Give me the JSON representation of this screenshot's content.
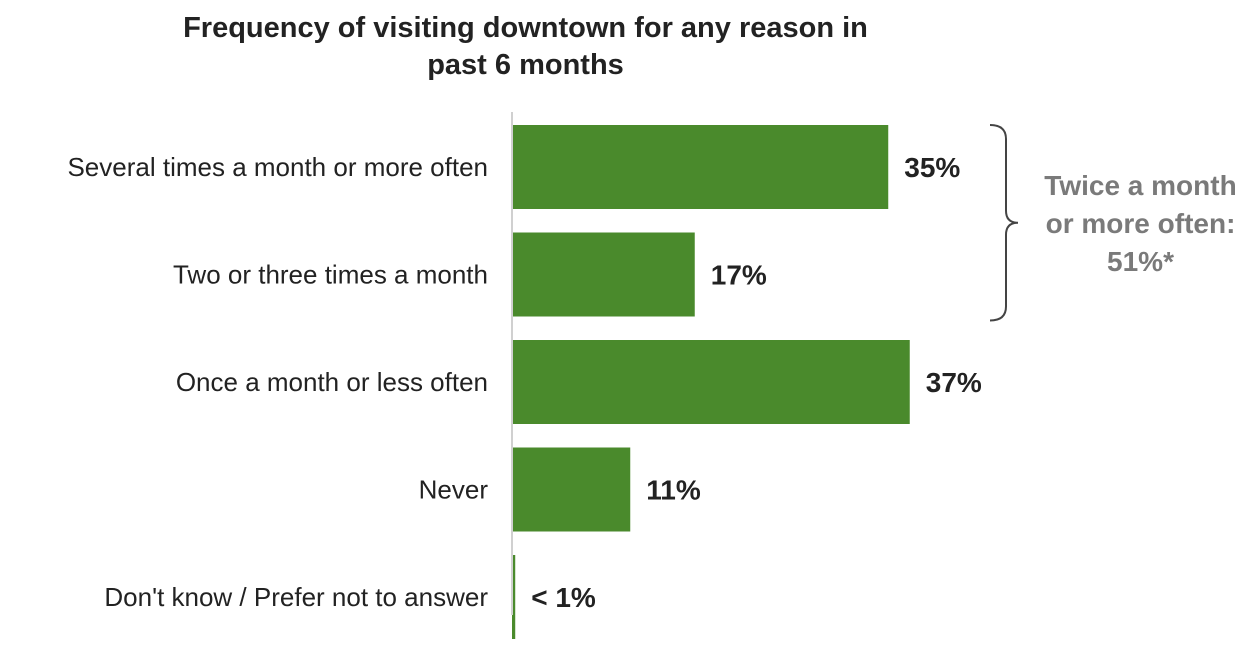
{
  "chart_data": {
    "type": "bar",
    "orientation": "horizontal",
    "title_lines": [
      "Frequency of visiting downtown for any reason in",
      "past 6 months"
    ],
    "categories": [
      "Several times a month or more often",
      "Two or three times a month",
      "Once a month or less often",
      "Never",
      "Don't know / Prefer not to answer"
    ],
    "values": [
      35,
      17,
      37,
      11,
      0.3
    ],
    "value_labels": [
      "35%",
      "17%",
      "37%",
      "11%",
      "< 1%"
    ],
    "xlim": [
      0,
      40
    ],
    "bar_color": "#4a8a2c",
    "grid": false,
    "legend": "none",
    "annotation": {
      "lines": [
        "Twice a month",
        "or more often:",
        "51%*"
      ],
      "spans_categories": [
        0,
        1
      ],
      "color": "#7a7a7a"
    }
  }
}
